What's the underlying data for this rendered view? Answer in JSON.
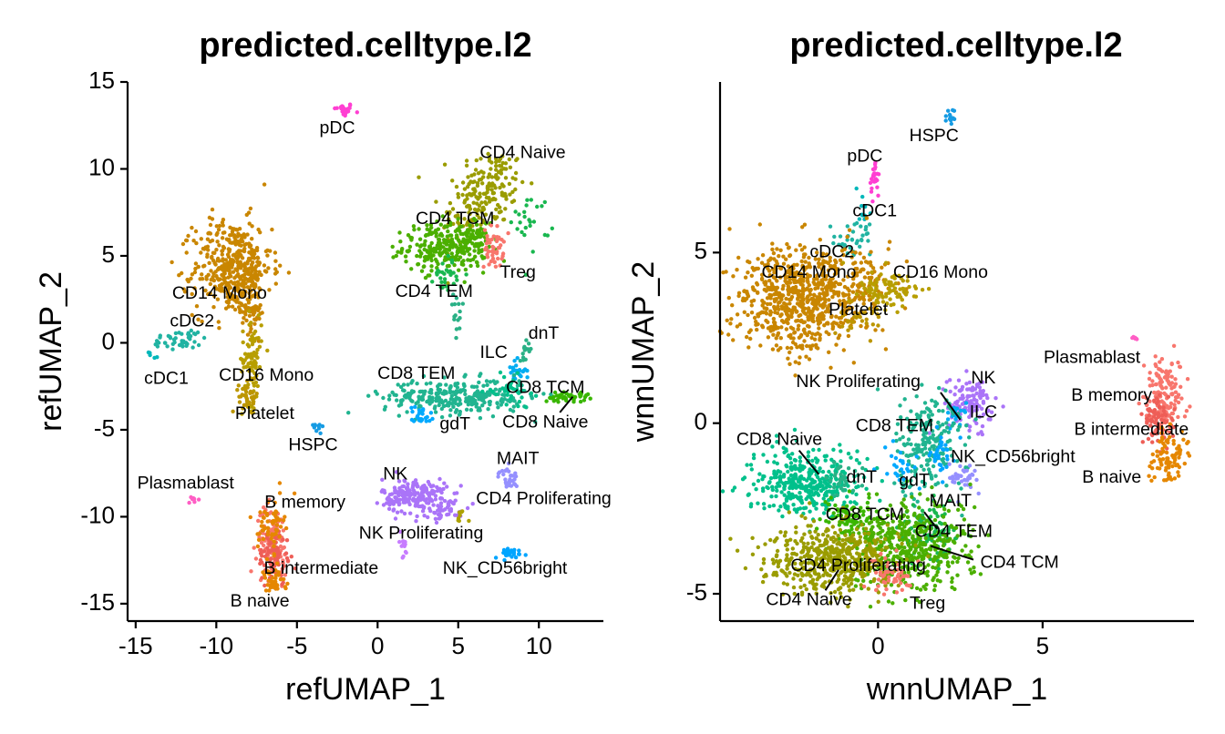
{
  "chart_data": [
    {
      "type": "scatter",
      "title": "predicted.celltype.l2",
      "xlabel": "refUMAP_1",
      "ylabel": "refUMAP_2",
      "xlim": [
        -15.5,
        14
      ],
      "ylim": [
        -16,
        15
      ],
      "xticks": [
        -15,
        -10,
        -5,
        0,
        5,
        10
      ],
      "yticks": [
        -15,
        -10,
        -5,
        0,
        5,
        10,
        15
      ],
      "grid": false,
      "legend": "none",
      "clusters": [
        {
          "label": "pDC",
          "color": "#FF3FD2",
          "lx": -2.5,
          "ly": 12.3,
          "blobs": [
            {
              "x": -2.1,
              "y": 13.4,
              "sx": 0.3,
              "sy": 0.2,
              "n": 25
            }
          ]
        },
        {
          "label": "CD4 Naive",
          "color": "#9A9C00",
          "lx": 9.0,
          "ly": 10.9,
          "blobs": [
            {
              "x": 7.0,
              "y": 9.0,
              "sx": 1.1,
              "sy": 1.1,
              "n": 140
            },
            {
              "x": 5.6,
              "y": 7.2,
              "sx": 0.8,
              "sy": 0.9,
              "n": 60
            }
          ]
        },
        {
          "label": "CD4 TCM",
          "color": "#4BAF00",
          "lx": 4.8,
          "ly": 7.1,
          "blobs": [
            {
              "x": 4.2,
              "y": 5.5,
              "sx": 1.3,
              "sy": 0.7,
              "n": 260
            },
            {
              "x": 6.2,
              "y": 5.8,
              "sx": 0.6,
              "sy": 0.5,
              "n": 40
            }
          ]
        },
        {
          "label": "Treg",
          "color": "#F8766D",
          "lx": 8.7,
          "ly": 4.0,
          "blobs": [
            {
              "x": 7.2,
              "y": 5.5,
              "sx": 0.3,
              "sy": 0.6,
              "n": 50
            }
          ]
        },
        {
          "label": "CD4 TEM",
          "color": "#19B74F",
          "lx": 3.5,
          "ly": 2.9,
          "blobs": [
            {
              "x": 4.3,
              "y": 4.0,
              "sx": 0.4,
              "sy": 0.5,
              "n": 30
            },
            {
              "x": 9.5,
              "y": 7.0,
              "sx": 0.6,
              "sy": 0.8,
              "n": 25
            }
          ]
        },
        {
          "label": "CD14 Mono",
          "color": "#C98600",
          "lx": -9.8,
          "ly": 2.8,
          "blobs": [
            {
              "x": -9.0,
              "y": 4.3,
              "sx": 1.2,
              "sy": 1.4,
              "n": 420
            },
            {
              "x": -7.8,
              "y": 2.6,
              "sx": 0.4,
              "sy": 1.0,
              "n": 60
            }
          ]
        },
        {
          "label": "cDC2",
          "color": "#21B3A2",
          "lx": -11.5,
          "ly": 1.2,
          "blobs": [
            {
              "x": -12.2,
              "y": 0.2,
              "sx": 0.9,
              "sy": 0.3,
              "n": 45
            }
          ]
        },
        {
          "label": "cDC1",
          "color": "#00B7BA",
          "lx": -13.1,
          "ly": -2.1,
          "blobs": [
            {
              "x": -14.0,
              "y": -0.6,
              "sx": 0.2,
              "sy": 0.2,
              "n": 5
            }
          ]
        },
        {
          "label": "CD16 Mono",
          "color": "#B79E00",
          "lx": -6.9,
          "ly": -1.9,
          "blobs": [
            {
              "x": -7.8,
              "y": -1.0,
              "sx": 0.3,
              "sy": 1.3,
              "n": 90
            }
          ]
        },
        {
          "label": "Platelet",
          "color": "#BC9600",
          "lx": -7.0,
          "ly": -4.1,
          "blobs": [
            {
              "x": -8.0,
              "y": -3.1,
              "sx": 0.3,
              "sy": 0.4,
              "n": 40
            }
          ]
        },
        {
          "label": "HSPC",
          "color": "#169BE3",
          "lx": -4.0,
          "ly": -5.9,
          "blobs": [
            {
              "x": -3.7,
              "y": -4.8,
              "sx": 0.2,
              "sy": 0.15,
              "n": 10
            }
          ]
        },
        {
          "label": "dnT",
          "color": "#2AB186",
          "lx": 10.3,
          "ly": 0.5,
          "blobs": [
            {
              "x": 9.2,
              "y": -0.3,
              "sx": 0.2,
              "sy": 0.3,
              "n": 15
            },
            {
              "x": 4.9,
              "y": 1.3,
              "sx": 0.2,
              "sy": 0.7,
              "n": 15
            }
          ]
        },
        {
          "label": "ILC",
          "color": "#00ADF2",
          "lx": 7.2,
          "ly": -0.6,
          "blobs": [
            {
              "x": 8.6,
              "y": -1.6,
              "sx": 0.3,
              "sy": 0.3,
              "n": 25
            }
          ]
        },
        {
          "label": "CD8 TEM",
          "color": "#21B490",
          "lx": 2.4,
          "ly": -1.8,
          "blobs": [
            {
              "x": 5.0,
              "y": -3.1,
              "sx": 2.3,
              "sy": 0.5,
              "n": 300
            }
          ]
        },
        {
          "label": "CD8 TCM",
          "color": "#39B600",
          "lx": 10.4,
          "ly": -2.6,
          "blobs": [
            {
              "x": 11.7,
              "y": -3.1,
              "sx": 0.7,
              "sy": 0.15,
              "n": 45
            }
          ]
        },
        {
          "label": "CD8 Naive",
          "color": "#00C08B",
          "lx": 10.4,
          "ly": -4.6,
          "blobs": [
            {
              "x": 8.3,
              "y": -2.7,
              "sx": 0.6,
              "sy": 0.4,
              "n": 35
            }
          ]
        },
        {
          "label": "gdT",
          "color": "#00A9FF",
          "lx": 4.8,
          "ly": -4.7,
          "blobs": [
            {
              "x": 2.7,
              "y": -4.2,
              "sx": 0.4,
              "sy": 0.3,
              "n": 25
            }
          ]
        },
        {
          "label": "MAIT",
          "color": "#9590FF",
          "lx": 8.7,
          "ly": -6.7,
          "blobs": [
            {
              "x": 8.1,
              "y": -7.8,
              "sx": 0.3,
              "sy": 0.3,
              "n": 30
            }
          ]
        },
        {
          "label": "NK",
          "color": "#AA74F8",
          "lx": 1.1,
          "ly": -7.6,
          "blobs": [
            {
              "x": 2.3,
              "y": -8.8,
              "sx": 1.0,
              "sy": 0.5,
              "n": 200
            },
            {
              "x": 4.2,
              "y": -9.6,
              "sx": 0.7,
              "sy": 0.3,
              "n": 40
            }
          ]
        },
        {
          "label": "CD4 Proliferating",
          "color": "#ADA200",
          "lx": 10.3,
          "ly": -9.0,
          "blobs": [
            {
              "x": 5.3,
              "y": -9.9,
              "sx": 0.2,
              "sy": 0.2,
              "n": 8
            }
          ]
        },
        {
          "label": "NK Proliferating",
          "color": "#C77CFF",
          "lx": 2.7,
          "ly": -11.0,
          "blobs": [
            {
              "x": 1.6,
              "y": -11.6,
              "sx": 0.15,
              "sy": 0.4,
              "n": 15
            }
          ]
        },
        {
          "label": "NK_CD56bright",
          "color": "#00A5FF",
          "lx": 7.9,
          "ly": -13.0,
          "blobs": [
            {
              "x": 8.2,
              "y": -12.1,
              "sx": 0.5,
              "sy": 0.15,
              "n": 30
            }
          ]
        },
        {
          "label": "Plasmablast",
          "color": "#FF5EC5",
          "lx": -11.9,
          "ly": -8.1,
          "blobs": [
            {
              "x": -11.5,
              "y": -9.1,
              "sx": 0.15,
              "sy": 0.15,
              "n": 8
            }
          ]
        },
        {
          "label": "B memory",
          "color": "#F8766D",
          "lx": -4.5,
          "ly": -9.2,
          "blobs": [
            {
              "x": -6.5,
              "y": -11.4,
              "sx": 0.5,
              "sy": 1.0,
              "n": 100
            }
          ]
        },
        {
          "label": "B intermediate",
          "color": "#EE5E57",
          "lx": -3.5,
          "ly": -13.0,
          "blobs": [
            {
              "x": -6.4,
              "y": -12.3,
              "sx": 0.5,
              "sy": 0.8,
              "n": 80
            }
          ]
        },
        {
          "label": "B naive",
          "color": "#E58700",
          "lx": -7.3,
          "ly": -14.9,
          "blobs": [
            {
              "x": -6.6,
              "y": -10.4,
              "sx": 0.4,
              "sy": 0.8,
              "n": 60
            },
            {
              "x": -6.5,
              "y": -13.8,
              "sx": 0.4,
              "sy": 0.4,
              "n": 40
            }
          ]
        }
      ],
      "leaders": [
        {
          "from": [
            12.1,
            -3.1
          ],
          "to": [
            11.3,
            -4.0
          ]
        }
      ]
    },
    {
      "type": "scatter",
      "title": "predicted.celltype.l2",
      "xlabel": "wnnUMAP_1",
      "ylabel": "wnnUMAP_2",
      "xlim": [
        -4.8,
        9.6
      ],
      "ylim": [
        -5.8,
        10
      ],
      "xticks": [
        0,
        5
      ],
      "yticks": [
        -5,
        0,
        5
      ],
      "grid": false,
      "legend": "none",
      "clusters": [
        {
          "label": "HSPC",
          "color": "#169BE3",
          "lx": 1.7,
          "ly": 8.4,
          "blobs": [
            {
              "x": 2.2,
              "y": 9.1,
              "sx": 0.08,
              "sy": 0.15,
              "n": 12
            }
          ]
        },
        {
          "label": "pDC",
          "color": "#FF3FD2",
          "lx": -0.4,
          "ly": 7.8,
          "blobs": [
            {
              "x": -0.1,
              "y": 7.2,
              "sx": 0.08,
              "sy": 0.3,
              "n": 25
            }
          ]
        },
        {
          "label": "cDC1",
          "color": "#00B7BA",
          "lx": -0.1,
          "ly": 6.2,
          "blobs": [
            {
              "x": -0.5,
              "y": 6.2,
              "sx": 0.1,
              "sy": 0.3,
              "n": 10
            }
          ]
        },
        {
          "label": "cDC2",
          "color": "#21B3A2",
          "lx": -1.4,
          "ly": 5.0,
          "blobs": [
            {
              "x": -0.8,
              "y": 5.4,
              "sx": 0.35,
              "sy": 0.3,
              "n": 35
            }
          ]
        },
        {
          "label": "CD14 Mono",
          "color": "#C98600",
          "lx": -2.1,
          "ly": 4.4,
          "blobs": [
            {
              "x": -2.4,
              "y": 3.6,
              "sx": 1.0,
              "sy": 0.8,
              "n": 700
            },
            {
              "x": -0.6,
              "y": 4.1,
              "sx": 0.5,
              "sy": 0.4,
              "n": 100
            }
          ]
        },
        {
          "label": "CD16 Mono",
          "color": "#B79E00",
          "lx": 1.9,
          "ly": 4.4,
          "blobs": [
            {
              "x": 0.3,
              "y": 3.9,
              "sx": 0.5,
              "sy": 0.3,
              "n": 90
            }
          ]
        },
        {
          "label": "Platelet",
          "color": "#BC9600",
          "lx": -0.6,
          "ly": 3.3,
          "blobs": [
            {
              "x": -0.6,
              "y": 3.0,
              "sx": 0.4,
              "sy": 0.25,
              "n": 30
            }
          ]
        },
        {
          "label": "Plasmablast",
          "color": "#FF5EC5",
          "lx": 6.5,
          "ly": 1.9,
          "blobs": [
            {
              "x": 7.8,
              "y": 2.5,
              "sx": 0.05,
              "sy": 0.05,
              "n": 6
            }
          ]
        },
        {
          "label": "B memory",
          "color": "#F8766D",
          "lx": 7.1,
          "ly": 0.8,
          "blobs": [
            {
              "x": 8.7,
              "y": 0.8,
              "sx": 0.3,
              "sy": 0.5,
              "n": 150
            }
          ]
        },
        {
          "label": "B intermediate",
          "color": "#EE5E57",
          "lx": 7.7,
          "ly": -0.2,
          "blobs": [
            {
              "x": 8.5,
              "y": 0.0,
              "sx": 0.25,
              "sy": 0.4,
              "n": 70
            }
          ]
        },
        {
          "label": "B naive",
          "color": "#E58700",
          "lx": 7.1,
          "ly": -1.6,
          "blobs": [
            {
              "x": 8.8,
              "y": -1.0,
              "sx": 0.3,
              "sy": 0.35,
              "n": 90
            }
          ]
        },
        {
          "label": "NK Proliferating",
          "color": "#C77CFF",
          "lx": -0.6,
          "ly": 1.2,
          "blobs": [
            {
              "x": 2.3,
              "y": 0.4,
              "sx": 0.1,
              "sy": 0.1,
              "n": 8
            }
          ]
        },
        {
          "label": "NK",
          "color": "#AA74F8",
          "lx": 3.2,
          "ly": 1.3,
          "blobs": [
            {
              "x": 2.8,
              "y": 0.6,
              "sx": 0.35,
              "sy": 0.35,
              "n": 130
            }
          ]
        },
        {
          "label": "ILC",
          "color": "#00ADF2",
          "lx": 3.2,
          "ly": 0.3,
          "blobs": [
            {
              "x": 2.4,
              "y": 0.3,
              "sx": 0.2,
              "sy": 0.2,
              "n": 20
            }
          ]
        },
        {
          "label": "CD8 TEM",
          "color": "#21B490",
          "lx": 0.5,
          "ly": -0.1,
          "blobs": [
            {
              "x": 1.5,
              "y": -0.6,
              "sx": 0.5,
              "sy": 0.8,
              "n": 220
            }
          ]
        },
        {
          "label": "NK_CD56bright",
          "color": "#00A5FF",
          "lx": 4.1,
          "ly": -1.0,
          "blobs": [
            {
              "x": 1.9,
              "y": -0.8,
              "sx": 0.2,
              "sy": 0.3,
              "n": 30
            }
          ]
        },
        {
          "label": "CD8 Naive",
          "color": "#00C08B",
          "lx": -3.0,
          "ly": -0.5,
          "blobs": [
            {
              "x": -2.2,
              "y": -1.8,
              "sx": 0.8,
              "sy": 0.5,
              "n": 380
            }
          ]
        },
        {
          "label": "dnT",
          "color": "#2AB186",
          "lx": -0.5,
          "ly": -1.6,
          "blobs": [
            {
              "x": -1.0,
              "y": -1.6,
              "sx": 0.3,
              "sy": 0.3,
              "n": 30
            }
          ]
        },
        {
          "label": "gdT",
          "color": "#00A9FF",
          "lx": 1.1,
          "ly": -1.7,
          "blobs": [
            {
              "x": 0.7,
              "y": -1.3,
              "sx": 0.3,
              "sy": 0.3,
              "n": 25
            }
          ]
        },
        {
          "label": "MAIT",
          "color": "#9590FF",
          "lx": 2.2,
          "ly": -2.3,
          "blobs": [
            {
              "x": 2.6,
              "y": -1.6,
              "sx": 0.2,
              "sy": 0.2,
              "n": 35
            }
          ]
        },
        {
          "label": "CD8 TCM",
          "color": "#39B600",
          "lx": -0.4,
          "ly": -2.7,
          "blobs": [
            {
              "x": -0.8,
              "y": -2.8,
              "sx": 0.5,
              "sy": 0.3,
              "n": 80
            }
          ]
        },
        {
          "label": "CD4 TEM",
          "color": "#19B74F",
          "lx": 2.3,
          "ly": -3.2,
          "blobs": [
            {
              "x": 1.6,
              "y": -3.2,
              "sx": 0.4,
              "sy": 0.4,
              "n": 100
            }
          ]
        },
        {
          "label": "CD4 TCM",
          "color": "#4BAF00",
          "lx": 4.3,
          "ly": -4.1,
          "blobs": [
            {
              "x": 1.0,
              "y": -3.6,
              "sx": 0.9,
              "sy": 0.6,
              "n": 450
            }
          ]
        },
        {
          "label": "CD4 Proliferating",
          "color": "#ADA200",
          "lx": -0.6,
          "ly": -4.2,
          "blobs": [
            {
              "x": -0.4,
              "y": -4.1,
              "sx": 0.2,
              "sy": 0.2,
              "n": 20
            }
          ]
        },
        {
          "label": "CD4 Naive",
          "color": "#9A9C00",
          "lx": -2.1,
          "ly": -5.2,
          "blobs": [
            {
              "x": -1.5,
              "y": -4.0,
              "sx": 1.0,
              "sy": 0.5,
              "n": 480
            }
          ]
        },
        {
          "label": "Treg",
          "color": "#F8766D",
          "lx": 1.5,
          "ly": -5.3,
          "blobs": [
            {
              "x": 0.4,
              "y": -4.5,
              "sx": 0.35,
              "sy": 0.25,
              "n": 50
            }
          ]
        }
      ],
      "leaders": [
        {
          "from": [
            -2.4,
            -0.8
          ],
          "to": [
            -1.8,
            -1.5
          ]
        },
        {
          "from": [
            1.9,
            0.9
          ],
          "to": [
            2.5,
            0.1
          ]
        },
        {
          "from": [
            1.4,
            -2.6
          ],
          "to": [
            1.8,
            -3.1
          ]
        },
        {
          "from": [
            1.6,
            -3.6
          ],
          "to": [
            2.9,
            -4.0
          ]
        },
        {
          "from": [
            -1.2,
            -4.3
          ],
          "to": [
            -1.6,
            -4.9
          ]
        }
      ]
    }
  ]
}
